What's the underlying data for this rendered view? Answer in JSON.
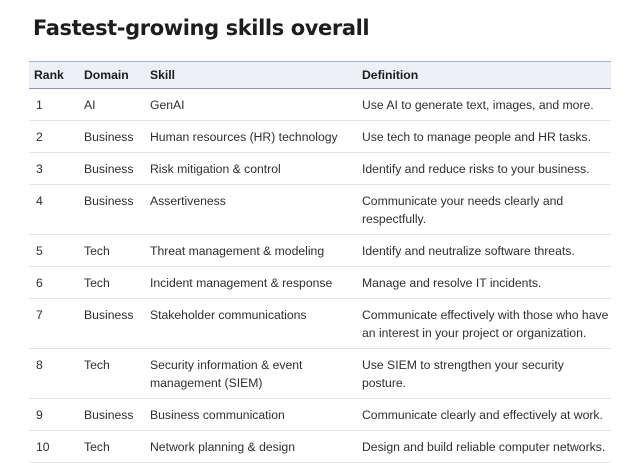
{
  "title": "Fastest-growing skills overall",
  "table": {
    "headers": {
      "rank": "Rank",
      "domain": "Domain",
      "skill": "Skill",
      "definition": "Definition"
    },
    "rows": [
      {
        "rank": "1",
        "domain": "AI",
        "skill": "GenAI",
        "definition": "Use AI to generate text, images, and more."
      },
      {
        "rank": "2",
        "domain": "Business",
        "skill": "Human resources (HR) technology",
        "definition": "Use tech to manage people and HR tasks."
      },
      {
        "rank": "3",
        "domain": "Business",
        "skill": "Risk mitigation & control",
        "definition": "Identify and reduce risks to your business."
      },
      {
        "rank": "4",
        "domain": "Business",
        "skill": "Assertiveness",
        "definition": "Communicate your needs clearly and respectfully."
      },
      {
        "rank": "5",
        "domain": "Tech",
        "skill": "Threat management & modeling",
        "definition": "Identify and neutralize software threats."
      },
      {
        "rank": "6",
        "domain": "Tech",
        "skill": "Incident management & response",
        "definition": "Manage and resolve IT incidents."
      },
      {
        "rank": "7",
        "domain": "Business",
        "skill": "Stakeholder communications",
        "definition": "Communicate effectively with those who have an interest in your project or organization."
      },
      {
        "rank": "8",
        "domain": "Tech",
        "skill": "Security information & event management (SIEM)",
        "definition": "Use SIEM to strengthen your security posture."
      },
      {
        "rank": "9",
        "domain": "Business",
        "skill": "Business communication",
        "definition": "Communicate clearly and effectively at work."
      },
      {
        "rank": "10",
        "domain": "Tech",
        "skill": "Network planning & design",
        "definition": "Design and build reliable computer networks."
      }
    ]
  }
}
